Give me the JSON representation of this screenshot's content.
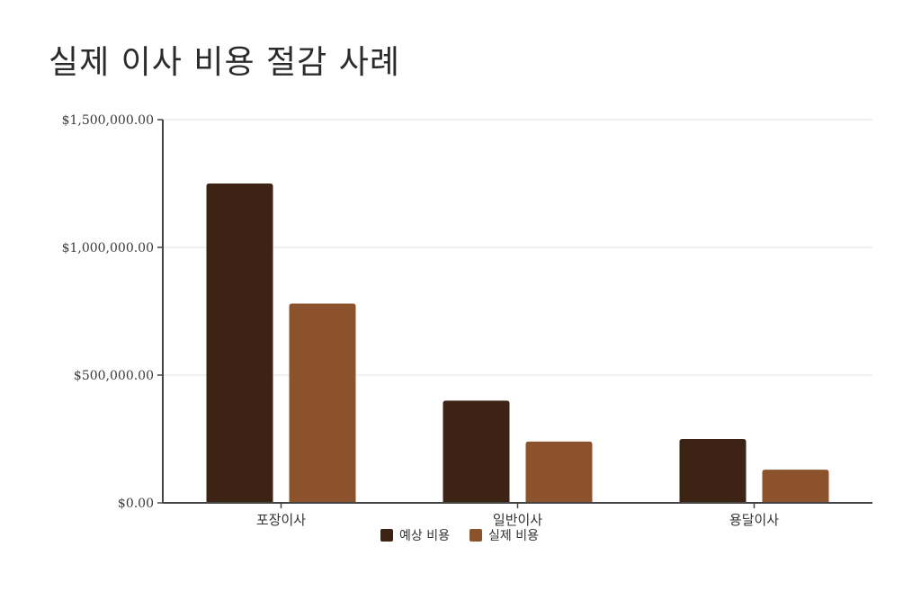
{
  "chart_data": {
    "type": "bar",
    "title": "실제 이사 비용 절감 사례",
    "categories": [
      "포장이사",
      "일반이사",
      "용달이사"
    ],
    "series": [
      {
        "name": "예상 비용",
        "color": "#3d2314",
        "values": [
          1250000,
          400000,
          250000
        ]
      },
      {
        "name": "실제 비용",
        "color": "#8b522b",
        "values": [
          780000,
          240000,
          130000
        ]
      }
    ],
    "ylim": [
      0,
      1500000
    ],
    "yticks": [
      0,
      500000,
      1000000,
      1500000
    ],
    "ytick_labels": [
      "$0.00",
      "$500,000.00",
      "$1,000,000.00",
      "$1,500,000.00"
    ],
    "grid": true,
    "legend": "bottom-center",
    "xlabel": "",
    "ylabel": ""
  }
}
